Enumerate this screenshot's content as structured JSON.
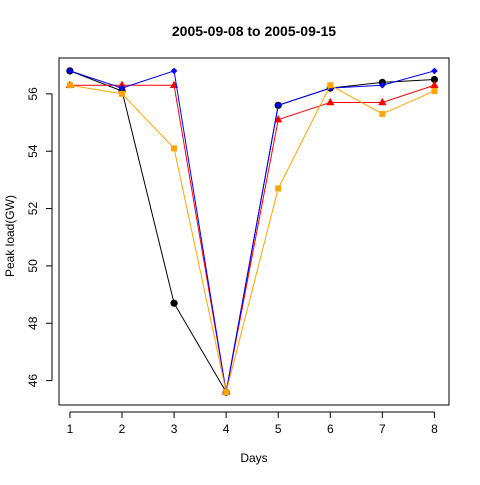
{
  "chart_data": {
    "type": "line",
    "title": "2005-09-08 to 2005-09-15",
    "xlabel": "Days",
    "ylabel": "Peak load(GW)",
    "x": [
      1,
      2,
      3,
      4,
      5,
      6,
      7,
      8
    ],
    "xlim": [
      0.79,
      8.28
    ],
    "ylim": [
      45.15,
      57.25
    ],
    "xticks": [
      "1",
      "2",
      "3",
      "4",
      "5",
      "6",
      "7",
      "8"
    ],
    "yticks": [
      "46",
      "48",
      "50",
      "52",
      "54",
      "56"
    ],
    "grid": false,
    "legend": "none",
    "series": [
      {
        "color": "#000000",
        "marker": "circle",
        "values": [
          56.8,
          56.1,
          48.7,
          45.6,
          55.6,
          56.2,
          56.4,
          56.5
        ]
      },
      {
        "color": "#ff0000",
        "marker": "triangle",
        "values": [
          56.3,
          56.3,
          56.3,
          45.6,
          55.1,
          55.7,
          55.7,
          56.3
        ]
      },
      {
        "color": "#0000ff",
        "marker": "diamond",
        "values": [
          56.8,
          56.2,
          56.8,
          45.6,
          55.6,
          56.2,
          56.3,
          56.8
        ]
      },
      {
        "color": "#ffa500",
        "marker": "square",
        "values": [
          56.3,
          56.0,
          54.1,
          45.6,
          52.7,
          56.3,
          55.3,
          56.1
        ]
      }
    ]
  }
}
